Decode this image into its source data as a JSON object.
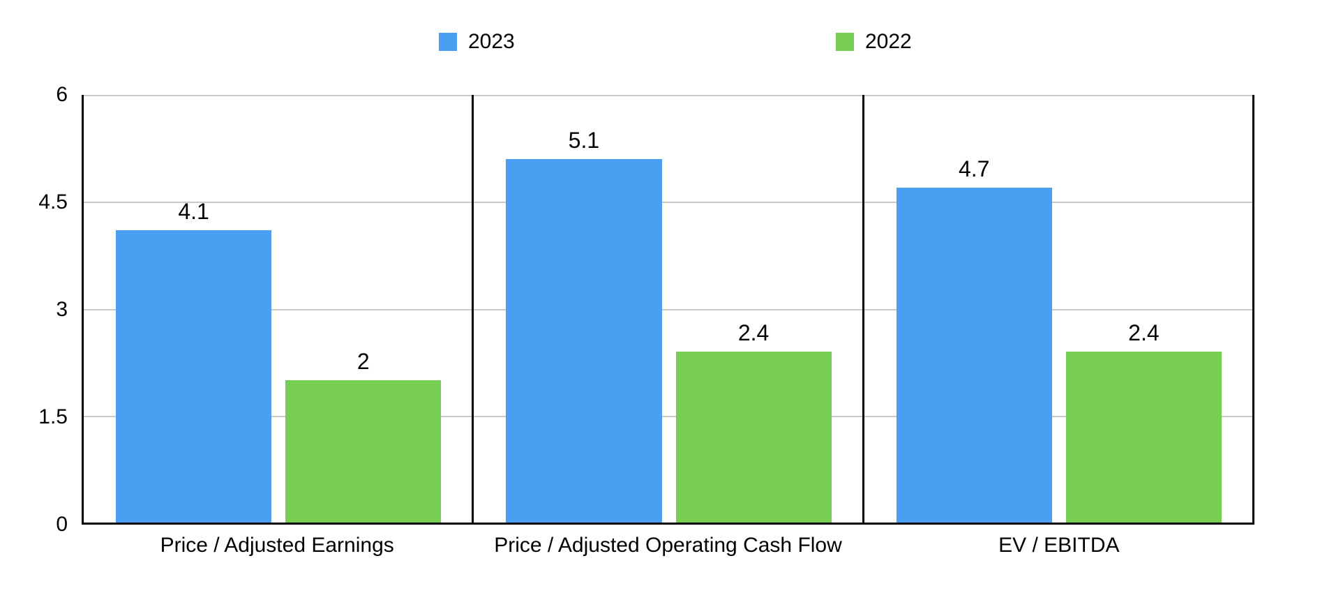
{
  "chart_data": {
    "type": "bar",
    "categories": [
      "Price / Adjusted Earnings",
      "Price / Adjusted Operating Cash Flow",
      "EV / EBITDA"
    ],
    "series": [
      {
        "name": "2023",
        "color": "#4A9FF3",
        "values": [
          4.1,
          5.1,
          4.7
        ]
      },
      {
        "name": "2022",
        "color": "#77CE52",
        "values": [
          2,
          2.4,
          2.4
        ]
      }
    ],
    "ylim": [
      0,
      6
    ],
    "yticks": [
      0,
      1.5,
      3,
      4.5,
      6
    ],
    "ytick_labels": [
      "0",
      "1.5",
      "3",
      "4.5",
      "6"
    ],
    "grid": true,
    "legend_position": "top",
    "axis_color": "#000000",
    "gridline_color": "#c9c9c9",
    "background_color": "#ffffff"
  }
}
